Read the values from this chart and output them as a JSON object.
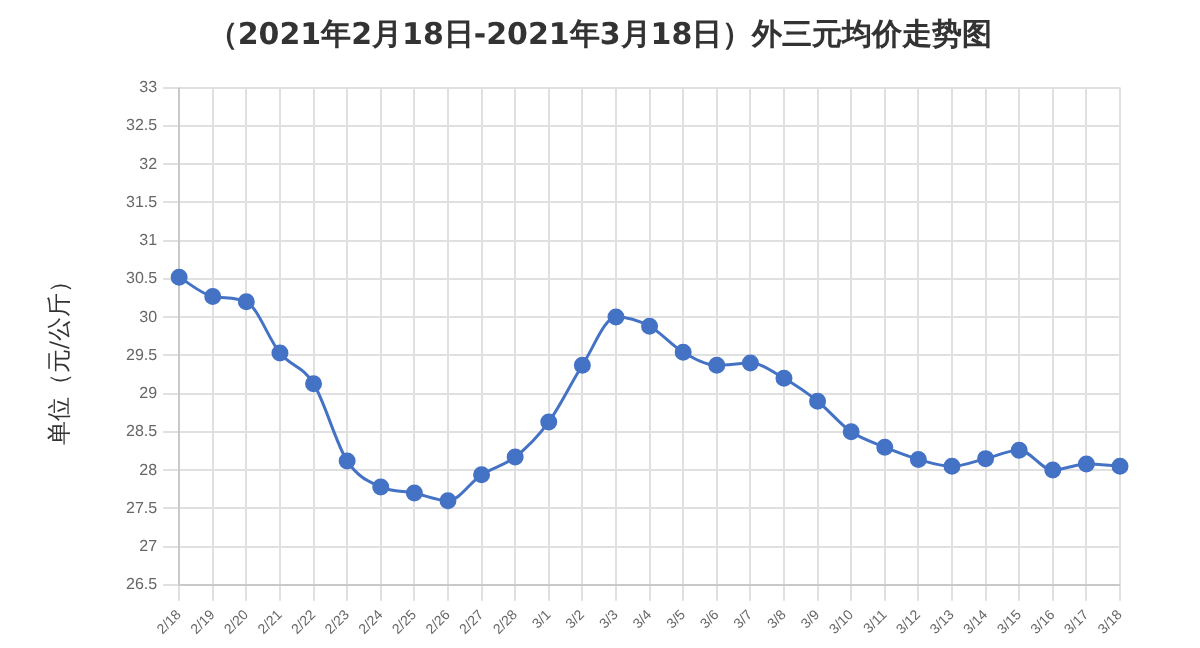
{
  "chart_data": {
    "type": "line",
    "title": "（2021年2月18日-2021年3月18日）外三元均价走势图",
    "ylabel": "单位（元/公斤）",
    "categories": [
      "2/18",
      "2/19",
      "2/20",
      "2/21",
      "2/22",
      "2/23",
      "2/24",
      "2/25",
      "2/26",
      "2/27",
      "2/28",
      "3/1",
      "3/2",
      "3/3",
      "3/4",
      "3/5",
      "3/6",
      "3/7",
      "3/8",
      "3/9",
      "3/10",
      "3/11",
      "3/12",
      "3/13",
      "3/14",
      "3/15",
      "3/16",
      "3/17",
      "3/18"
    ],
    "series": [
      {
        "color": "#4472c4",
        "values": [
          30.52,
          30.27,
          30.2,
          29.53,
          29.13,
          28.12,
          27.78,
          27.7,
          27.6,
          27.94,
          28.17,
          28.63,
          29.37,
          30.0,
          29.88,
          29.54,
          29.37,
          29.4,
          29.2,
          28.9,
          28.5,
          28.3,
          28.14,
          28.05,
          28.15,
          28.26,
          28.0,
          28.08,
          28.05
        ]
      }
    ],
    "ylim": [
      26.5,
      33
    ],
    "yticks": [
      26.5,
      27,
      27.5,
      28,
      28.5,
      29,
      29.5,
      30,
      30.5,
      31,
      31.5,
      32,
      32.5,
      33
    ],
    "grid": true,
    "legend": false,
    "marker": "circle",
    "line_style": "solid"
  }
}
